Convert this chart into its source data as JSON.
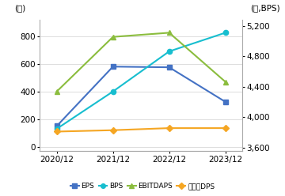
{
  "x_labels": [
    "2020/12",
    "2021/12",
    "2022/12",
    "2023/12"
  ],
  "x_values": [
    0,
    1,
    2,
    3
  ],
  "series": {
    "EPS": {
      "values": [
        150,
        580,
        575,
        325
      ],
      "color": "#4472C4",
      "marker": "s",
      "axis": "left"
    },
    "BPS": {
      "values": [
        130,
        400,
        690,
        825
      ],
      "color": "#17BECF",
      "marker": "o",
      "axis": "left"
    },
    "EBITDAPS": {
      "values": [
        400,
        795,
        825,
        470
      ],
      "color": "#8BBD3E",
      "marker": "^",
      "axis": "left"
    },
    "보통주DPS": {
      "values": [
        110,
        120,
        135,
        135
      ],
      "color": "#F5A623",
      "marker": "D",
      "axis": "left"
    }
  },
  "ylabel_left": "(원)",
  "ylabel_right": "(원,BPS)",
  "ylim_left": [
    -30,
    920
  ],
  "ylim_right": [
    3560,
    5280
  ],
  "yticks_left": [
    0,
    200,
    400,
    600,
    800
  ],
  "yticks_right": [
    3600,
    4000,
    4400,
    4800,
    5200
  ],
  "ytick_labels_right": [
    "3,600",
    "4,000",
    "4,400",
    "4,800",
    "5,200"
  ],
  "background_color": "#FFFFFF",
  "plot_bg_color": "#FFFFFF",
  "grid_color": "#DDDDDD",
  "legend_order": [
    "EPS",
    "BPS",
    "EBITDAPS",
    "보통주DPS"
  ],
  "font_size": 7.5
}
